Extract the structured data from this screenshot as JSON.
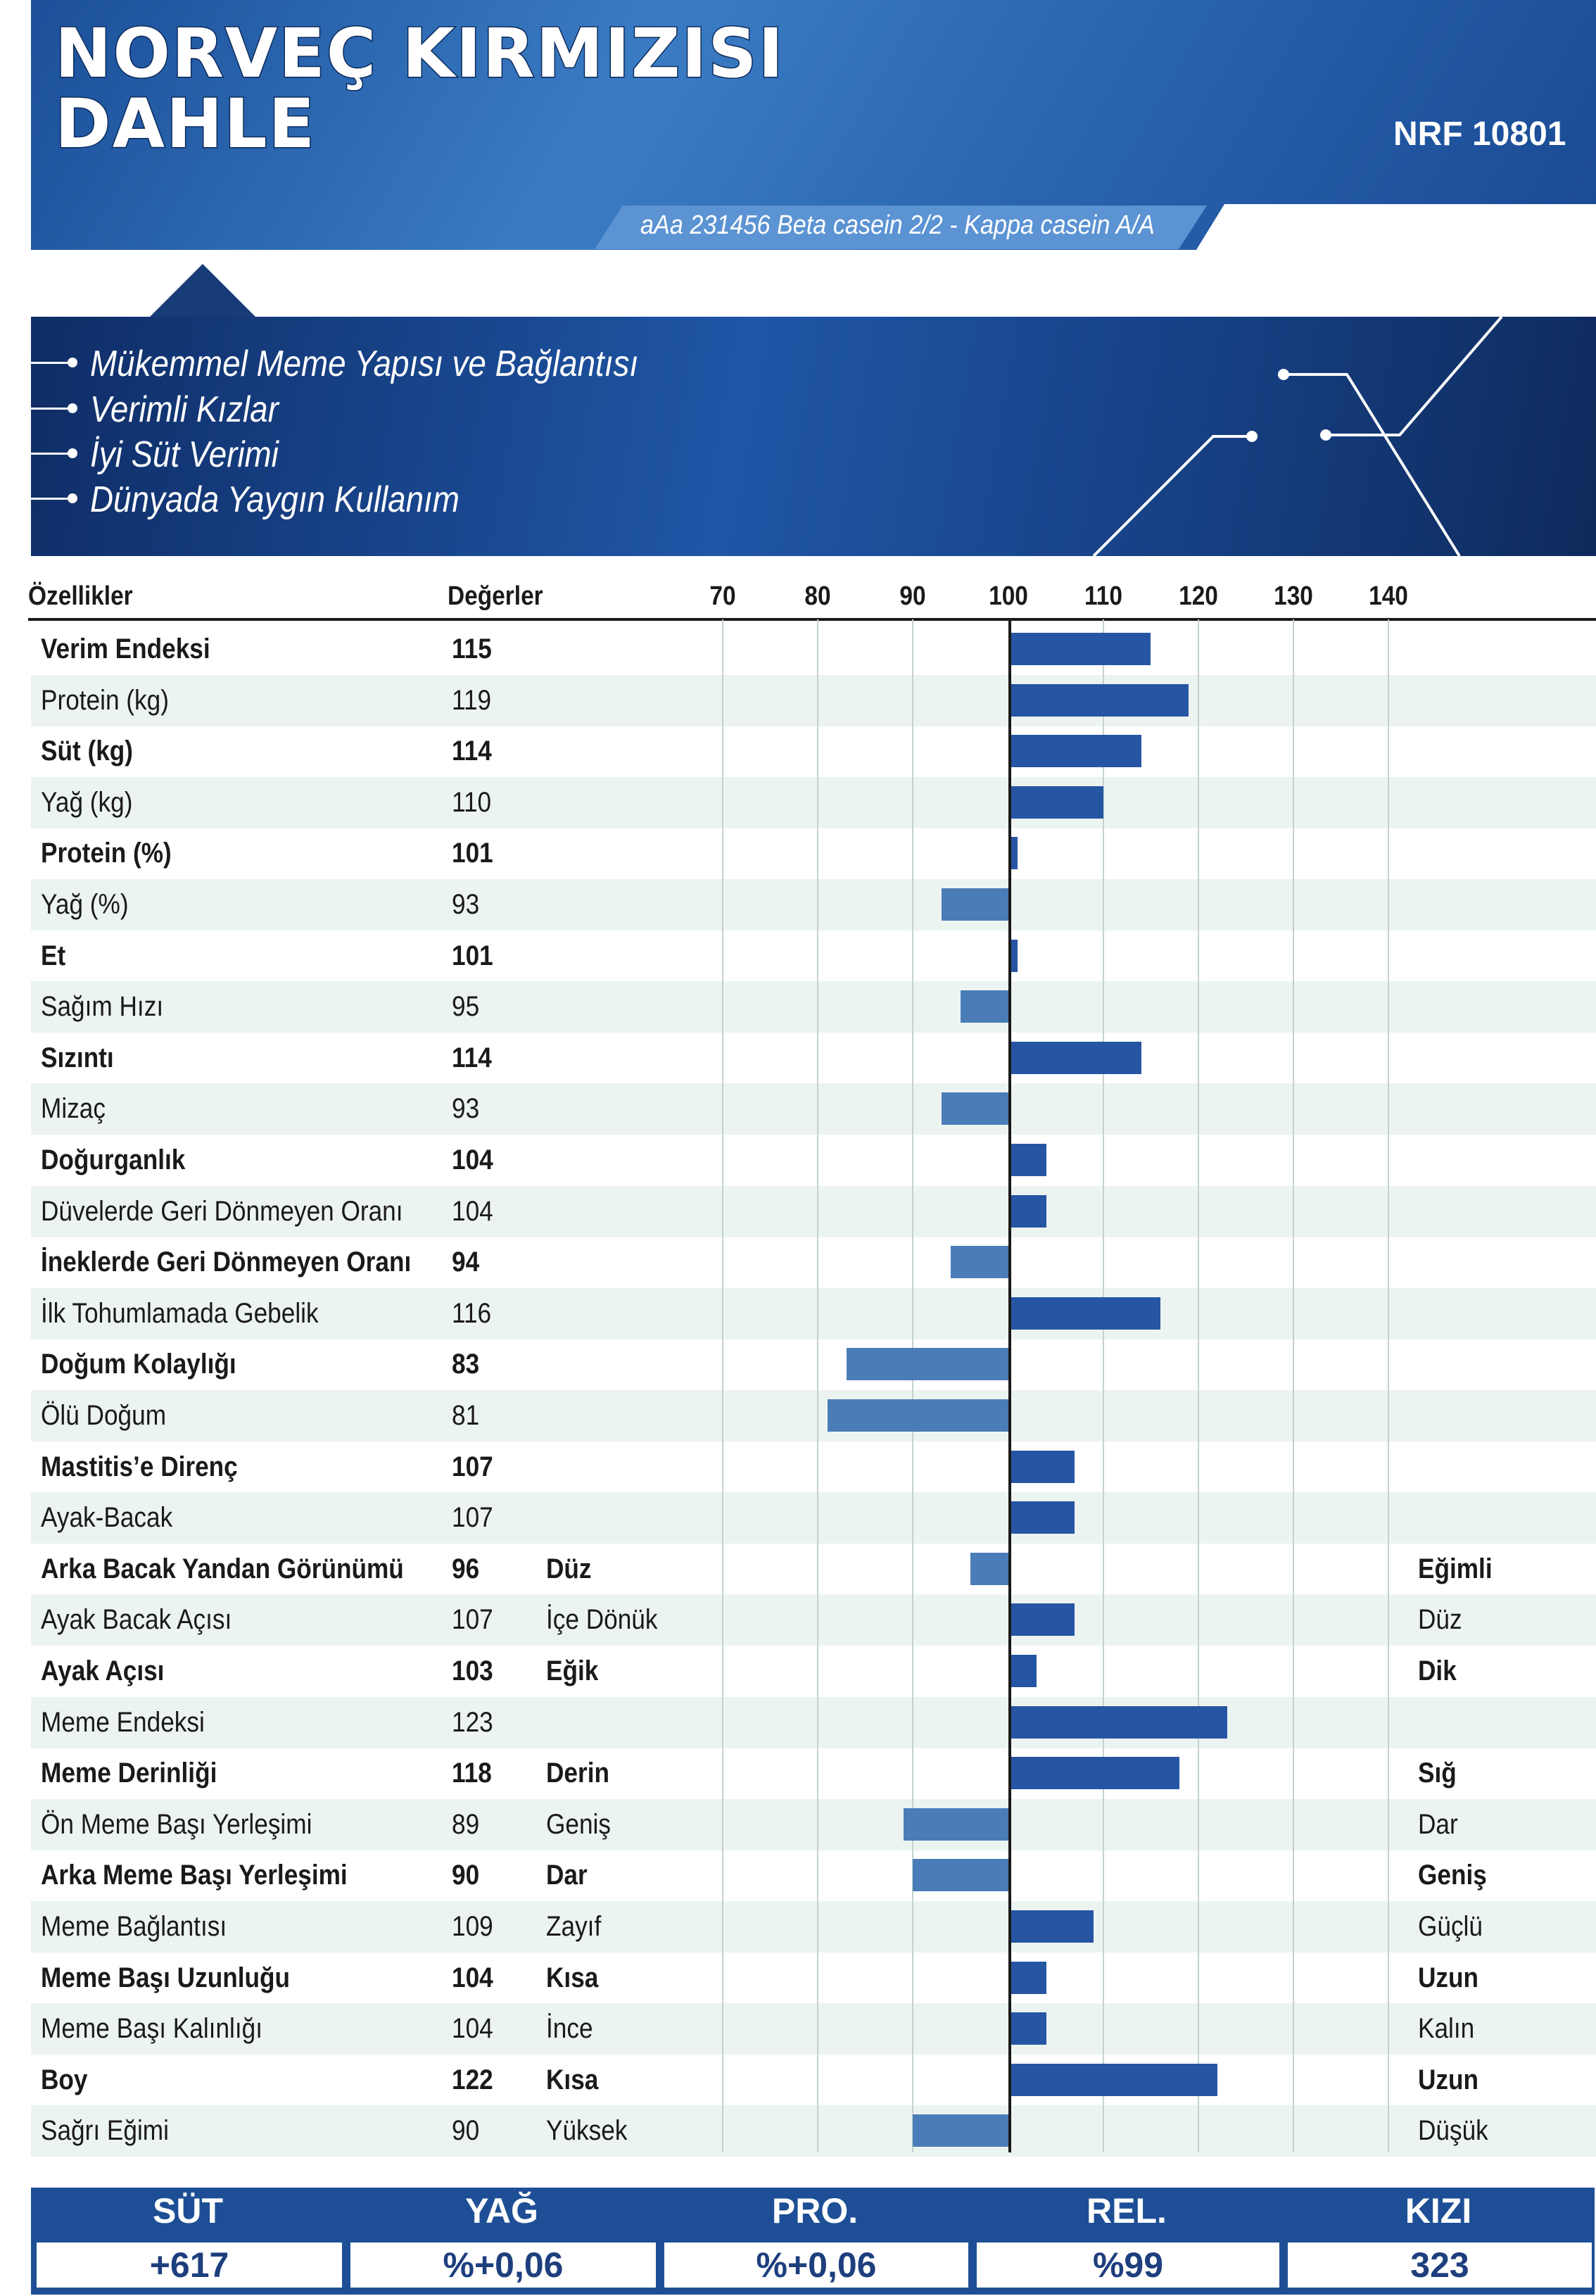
{
  "header": {
    "title_line1": "NORVEÇ KIRMIZISI",
    "title_line2": "DAHLE",
    "code": "NRF 10801",
    "casein": "aAa 231456 Beta casein 2/2 - Kappa casein A/A"
  },
  "highlights": [
    "Mükemmel Meme Yapısı ve Bağlantısı",
    "Verimli Kızlar",
    "İyi Süt Verimi",
    "Dünyada Yaygın Kullanım"
  ],
  "colors": {
    "bar_positive": "#2656a3",
    "bar_negative": "#4a7cb8",
    "header": "#2a64b0",
    "footer": "#1e4f96"
  },
  "chart_data": {
    "type": "bar",
    "orientation": "horizontal",
    "baseline": 100,
    "xlim": [
      70,
      140
    ],
    "ticks": [
      "70",
      "80",
      "90",
      "100",
      "110",
      "120",
      "130",
      "140"
    ],
    "column_headers": {
      "traits": "Özellikler",
      "values": "Değerler"
    },
    "rows": [
      {
        "name": "Verim Endeksi",
        "value": 115,
        "bold": true,
        "left": "",
        "right": ""
      },
      {
        "name": "Protein (kg)",
        "value": 119,
        "bold": false,
        "left": "",
        "right": ""
      },
      {
        "name": "Süt (kg)",
        "value": 114,
        "bold": true,
        "left": "",
        "right": ""
      },
      {
        "name": "Yağ (kg)",
        "value": 110,
        "bold": false,
        "left": "",
        "right": ""
      },
      {
        "name": "Protein (%)",
        "value": 101,
        "bold": true,
        "left": "",
        "right": ""
      },
      {
        "name": "Yağ (%)",
        "value": 93,
        "bold": false,
        "left": "",
        "right": ""
      },
      {
        "name": "Et",
        "value": 101,
        "bold": true,
        "left": "",
        "right": ""
      },
      {
        "name": "Sağım Hızı",
        "value": 95,
        "bold": false,
        "left": "",
        "right": ""
      },
      {
        "name": "Sızıntı",
        "value": 114,
        "bold": true,
        "left": "",
        "right": ""
      },
      {
        "name": "Mizaç",
        "value": 93,
        "bold": false,
        "left": "",
        "right": ""
      },
      {
        "name": "Doğurganlık",
        "value": 104,
        "bold": true,
        "left": "",
        "right": ""
      },
      {
        "name": "Düvelerde Geri Dönmeyen Oranı",
        "value": 104,
        "bold": false,
        "left": "",
        "right": ""
      },
      {
        "name": "İneklerde Geri Dönmeyen Oranı",
        "value": 94,
        "bold": true,
        "left": "",
        "right": ""
      },
      {
        "name": "İlk Tohumlamada Gebelik",
        "value": 116,
        "bold": false,
        "left": "",
        "right": ""
      },
      {
        "name": "Doğum Kolaylığı",
        "value": 83,
        "bold": true,
        "left": "",
        "right": ""
      },
      {
        "name": "Ölü Doğum",
        "value": 81,
        "bold": false,
        "left": "",
        "right": ""
      },
      {
        "name": "Mastitis’e Direnç",
        "value": 107,
        "bold": true,
        "left": "",
        "right": ""
      },
      {
        "name": "Ayak-Bacak",
        "value": 107,
        "bold": false,
        "left": "",
        "right": ""
      },
      {
        "name": "Arka Bacak Yandan Görünümü",
        "value": 96,
        "bold": true,
        "left": "Düz",
        "right": "Eğimli"
      },
      {
        "name": "Ayak Bacak Açısı",
        "value": 107,
        "bold": false,
        "left": "İçe Dönük",
        "right": "Düz"
      },
      {
        "name": "Ayak  Açısı",
        "value": 103,
        "bold": true,
        "left": "Eğik",
        "right": "Dik"
      },
      {
        "name": "Meme Endeksi",
        "value": 123,
        "bold": false,
        "left": "",
        "right": ""
      },
      {
        "name": "Meme Derinliği",
        "value": 118,
        "bold": true,
        "left": "Derin",
        "right": "Sığ"
      },
      {
        "name": "Ön Meme Başı Yerleşimi",
        "value": 89,
        "bold": false,
        "left": "Geniş",
        "right": "Dar"
      },
      {
        "name": "Arka Meme Başı Yerleşimi",
        "value": 90,
        "bold": true,
        "left": "Dar",
        "right": "Geniş"
      },
      {
        "name": "Meme Bağlantısı",
        "value": 109,
        "bold": false,
        "left": "Zayıf",
        "right": "Güçlü"
      },
      {
        "name": "Meme Başı Uzunluğu",
        "value": 104,
        "bold": true,
        "left": "Kısa",
        "right": "Uzun"
      },
      {
        "name": "Meme Başı Kalınlığı",
        "value": 104,
        "bold": false,
        "left": "İnce",
        "right": "Kalın"
      },
      {
        "name": "Boy",
        "value": 122,
        "bold": true,
        "left": "Kısa",
        "right": "Uzun"
      },
      {
        "name": "Sağrı Eğimi",
        "value": 90,
        "bold": false,
        "left": "Yüksek",
        "right": "Düşük"
      }
    ]
  },
  "summary": [
    {
      "label": "SÜT",
      "value": "+617"
    },
    {
      "label": "YAĞ",
      "value": "%+0,06"
    },
    {
      "label": "PRO.",
      "value": "%+0,06"
    },
    {
      "label": "REL.",
      "value": "%99"
    },
    {
      "label": "KIZI",
      "value": "323"
    }
  ]
}
